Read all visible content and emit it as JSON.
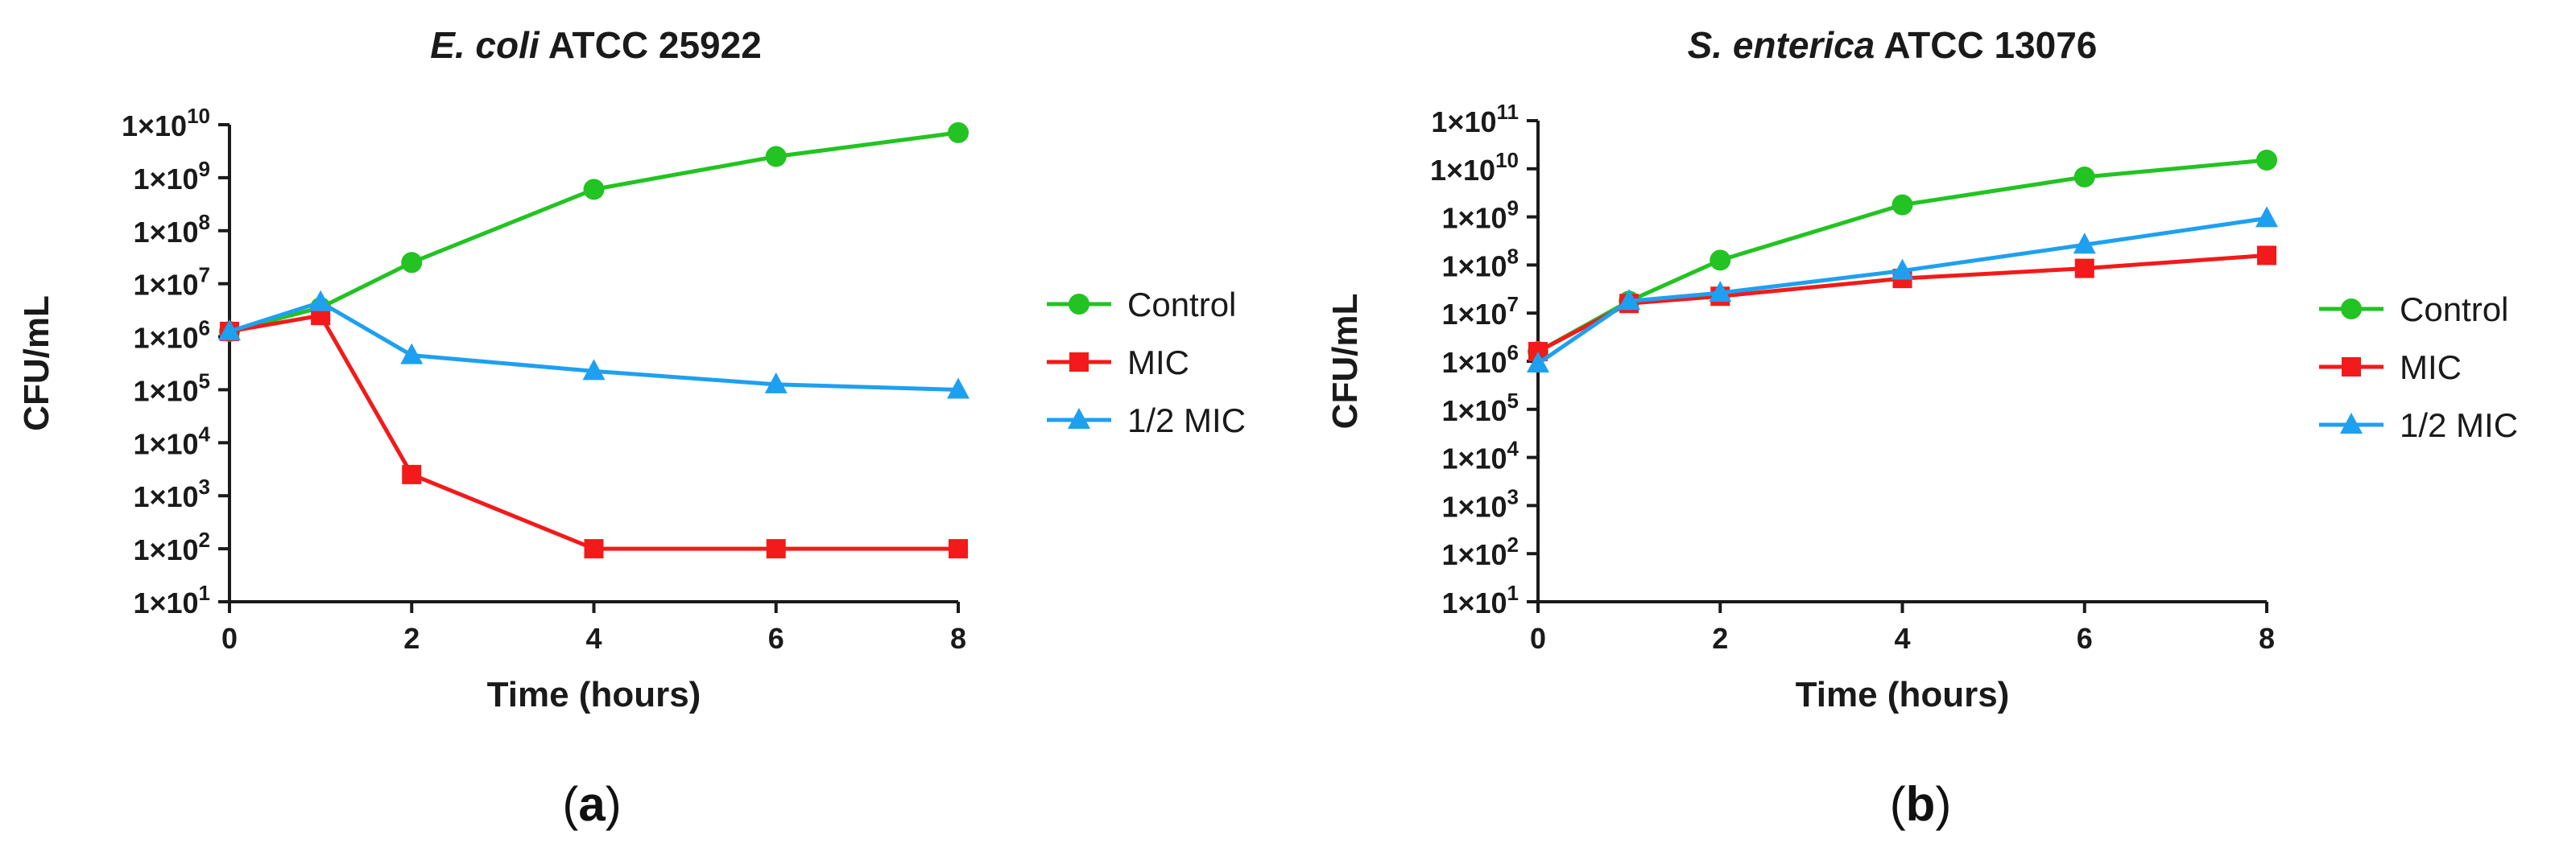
{
  "chart_data": [
    {
      "type": "line",
      "panel_label": "(a)",
      "title_italic": "E. coli",
      "title_rest": " ATCC 25922",
      "xlabel": "Time (hours)",
      "ylabel": "CFU/mL",
      "y_scale": "log10",
      "x_ticks": [
        0,
        2,
        4,
        6,
        8
      ],
      "x_tick_labels": [
        "0",
        "2",
        "4",
        "6",
        "8"
      ],
      "xlim": [
        0,
        8
      ],
      "ylim_log10": [
        1,
        10
      ],
      "y_tick_exponents": [
        1,
        2,
        3,
        4,
        5,
        6,
        7,
        8,
        9,
        10
      ],
      "y_tick_base": "1×10",
      "legend_position": "right",
      "series": [
        {
          "name": "Control",
          "color": "#22c322",
          "marker": "circle",
          "x": [
            0,
            1,
            2,
            4,
            6,
            8
          ],
          "log10_y": [
            6.1,
            6.55,
            7.4,
            8.78,
            9.4,
            9.85
          ]
        },
        {
          "name": "MIC",
          "color": "#f21a1a",
          "marker": "square",
          "x": [
            0,
            1,
            2,
            4,
            6,
            8
          ],
          "log10_y": [
            6.1,
            6.4,
            3.4,
            2.0,
            2.0,
            2.0
          ]
        },
        {
          "name": "1/2 MIC",
          "color": "#1ea0f0",
          "marker": "triangle",
          "x": [
            0,
            1,
            2,
            4,
            6,
            8
          ],
          "log10_y": [
            6.1,
            6.65,
            5.65,
            5.35,
            5.1,
            5.0
          ]
        }
      ]
    },
    {
      "type": "line",
      "panel_label": "(b)",
      "title_italic": "S. enterica",
      "title_rest": " ATCC 13076",
      "xlabel": "Time (hours)",
      "ylabel": "CFU/mL",
      "y_scale": "log10",
      "x_ticks": [
        0,
        2,
        4,
        6,
        8
      ],
      "x_tick_labels": [
        "0",
        "2",
        "4",
        "6",
        "8"
      ],
      "xlim": [
        0,
        8
      ],
      "ylim_log10": [
        1,
        11
      ],
      "y_tick_exponents": [
        1,
        2,
        3,
        4,
        5,
        6,
        7,
        8,
        9,
        10,
        11
      ],
      "y_tick_base": "1×10",
      "legend_position": "right",
      "series": [
        {
          "name": "Control",
          "color": "#22c322",
          "marker": "circle",
          "x": [
            0,
            1,
            2,
            4,
            6,
            8
          ],
          "log10_y": [
            6.2,
            7.25,
            8.1,
            9.25,
            9.83,
            10.18
          ]
        },
        {
          "name": "MIC",
          "color": "#f21a1a",
          "marker": "square",
          "x": [
            0,
            1,
            2,
            4,
            6,
            8
          ],
          "log10_y": [
            6.2,
            7.2,
            7.35,
            7.72,
            7.93,
            8.2
          ]
        },
        {
          "name": "1/2 MIC",
          "color": "#1ea0f0",
          "marker": "triangle",
          "x": [
            0,
            1,
            2,
            4,
            6,
            8
          ],
          "log10_y": [
            5.95,
            7.25,
            7.42,
            7.88,
            8.42,
            8.97
          ]
        }
      ]
    }
  ]
}
